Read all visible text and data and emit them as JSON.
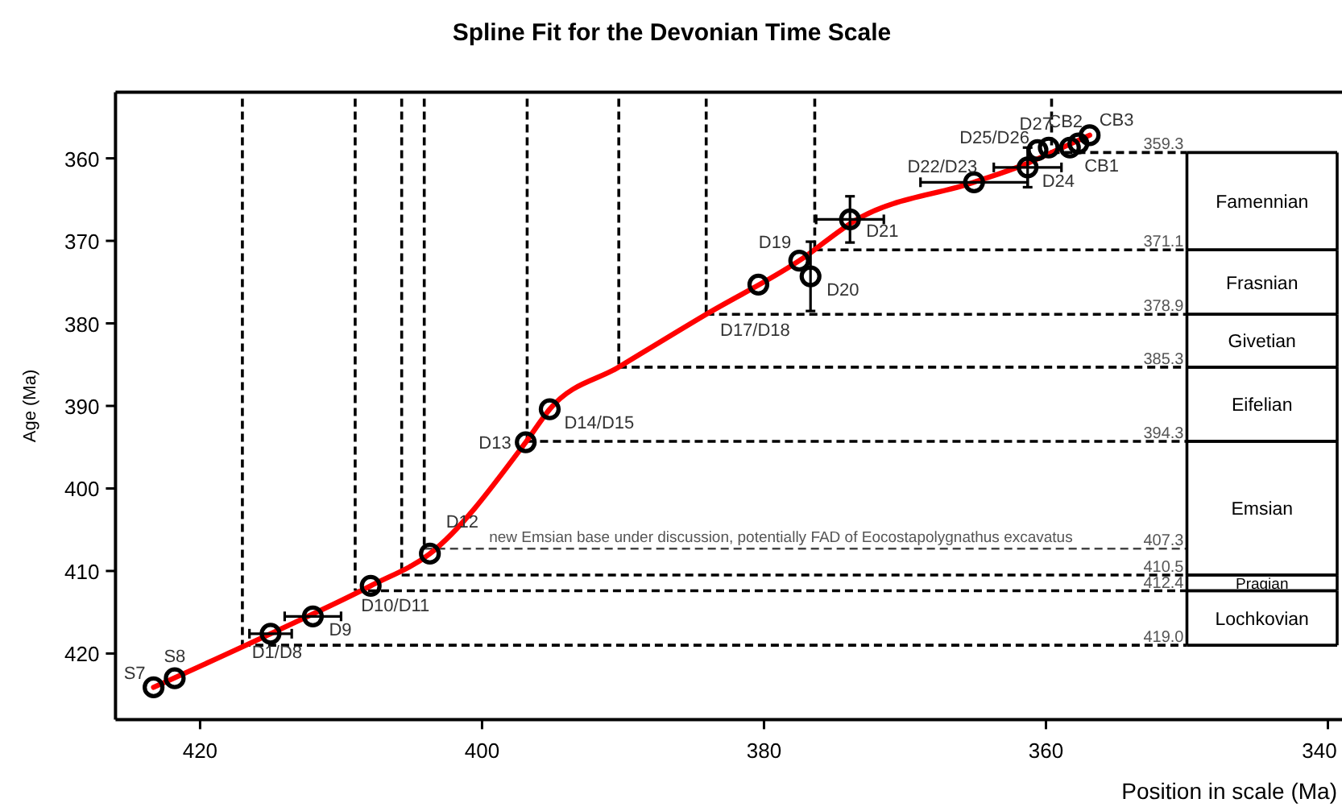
{
  "chart_data": {
    "type": "scatter",
    "title": "Spline Fit for the Devonian Time Scale",
    "xlabel": "Position in scale (Ma)",
    "ylabel": "Age (Ma)",
    "xlim": [
      426,
      339
    ],
    "xticks": [
      420,
      400,
      380,
      360,
      340
    ],
    "ylim": [
      428,
      352
    ],
    "yticks": [
      360,
      370,
      380,
      390,
      400,
      410,
      420
    ],
    "grid": false,
    "series": [
      {
        "type": "line",
        "color": "#ff0000",
        "line_style": "solid",
        "x": [
          423.3,
          415.0,
          407.9,
          403.7,
          396.9,
          395.2,
          390.3,
          384.1,
          377.5,
          373.5,
          365.1,
          361.3,
          359.6,
          356.9
        ],
        "values": [
          424.1,
          417.6,
          411.8,
          407.9,
          394.4,
          390.4,
          385.3,
          378.9,
          372.4,
          367.5,
          362.9,
          360.6,
          359.3,
          357.2
        ]
      },
      {
        "type": "scatter",
        "color": "#000000",
        "marker": "circle",
        "x": [
          423.3,
          421.8,
          415.0,
          412.0,
          407.9,
          403.7,
          396.9,
          395.2,
          380.4,
          377.5,
          376.7,
          373.9,
          365.1,
          361.3,
          360.6,
          359.8,
          358.3,
          357.7,
          356.9
        ],
        "values": [
          424.1,
          423.0,
          417.6,
          415.5,
          411.8,
          407.9,
          394.4,
          390.4,
          375.3,
          372.4,
          374.3,
          367.4,
          362.9,
          361.1,
          359.0,
          358.7,
          358.7,
          358.2,
          357.2
        ],
        "errors": [
          null,
          null,
          null,
          null,
          null,
          null,
          null,
          null,
          null,
          null,
          4.2,
          2.8,
          null,
          2.4,
          null,
          null,
          null,
          null,
          null
        ],
        "xerrors": [
          null,
          null,
          1.5,
          2.0,
          null,
          null,
          null,
          null,
          null,
          null,
          null,
          2.4,
          3.8,
          2.4,
          null,
          null,
          null,
          null,
          null
        ]
      }
    ],
    "annotations": [
      {
        "text": "S7",
        "x": 423.3,
        "y": 424.1
      },
      {
        "text": "S8",
        "x": 421.8,
        "y": 423.0
      },
      {
        "text": "D1/D8",
        "x": 415.0,
        "y": 417.6
      },
      {
        "text": "D9",
        "x": 412.0,
        "y": 415.5
      },
      {
        "text": "D10/D11",
        "x": 407.9,
        "y": 411.8
      },
      {
        "text": "D12",
        "x": 403.7,
        "y": 407.9
      },
      {
        "text": "D13",
        "x": 396.9,
        "y": 394.4
      },
      {
        "text": "D14/D15",
        "x": 395.2,
        "y": 390.4
      },
      {
        "text": "D17/D18",
        "x": 380.4,
        "y": 375.3
      },
      {
        "text": "D19",
        "x": 377.5,
        "y": 372.4
      },
      {
        "text": "D20",
        "x": 376.7,
        "y": 374.3
      },
      {
        "text": "D21",
        "x": 373.9,
        "y": 367.4
      },
      {
        "text": "D22/D23",
        "x": 365.1,
        "y": 362.9
      },
      {
        "text": "D24",
        "x": 361.3,
        "y": 361.1
      },
      {
        "text": "D25/D26",
        "x": 360.6,
        "y": 359.0
      },
      {
        "text": "D27",
        "x": 359.8,
        "y": 358.7
      },
      {
        "text": "CB1",
        "x": 358.3,
        "y": 358.7
      },
      {
        "text": "CB2",
        "x": 357.7,
        "y": 358.2
      },
      {
        "text": "CB3",
        "x": 356.9,
        "y": 357.2
      },
      {
        "text": "new Emsian base under discussion, potentially FAD of Eocostapolygnathus excavatus",
        "x": 399.5,
        "y": 407.3
      },
      "Famennian",
      "Frasnian",
      "Givetian",
      "Eifelian",
      "Emsian",
      "Pragian",
      "Lochkovian"
    ],
    "ref_lines": [
      {
        "axis": "y",
        "value": 359.3,
        "label": "359.3",
        "line_style": "dashed",
        "color": "#000000"
      },
      {
        "axis": "y",
        "value": 371.1,
        "label": "371.1",
        "line_style": "dashed",
        "color": "#000000"
      },
      {
        "axis": "y",
        "value": 378.9,
        "label": "378.9",
        "line_style": "dashed",
        "color": "#000000"
      },
      {
        "axis": "y",
        "value": 385.3,
        "label": "385.3",
        "line_style": "dashed",
        "color": "#000000"
      },
      {
        "axis": "y",
        "value": 394.3,
        "label": "394.3",
        "line_style": "dashed",
        "color": "#000000"
      },
      {
        "axis": "y",
        "value": 407.3,
        "label": "407.3",
        "line_style": "dashed",
        "color": "#444444"
      },
      {
        "axis": "y",
        "value": 410.5,
        "label": "410.5",
        "line_style": "dashed",
        "color": "#000000"
      },
      {
        "axis": "y",
        "value": 412.4,
        "label": "412.4",
        "line_style": "dashed",
        "color": "#000000"
      },
      {
        "axis": "y",
        "value": 419.0,
        "label": "419.0",
        "line_style": "dashed",
        "color": "#000000"
      },
      {
        "axis": "x",
        "value": 359.6,
        "line_style": "dashed",
        "color": "#000000"
      },
      {
        "axis": "x",
        "value": 376.4,
        "line_style": "dashed",
        "color": "#000000"
      },
      {
        "axis": "x",
        "value": 384.1,
        "line_style": "dashed",
        "color": "#000000"
      },
      {
        "axis": "x",
        "value": 390.3,
        "line_style": "dashed",
        "color": "#000000"
      },
      {
        "axis": "x",
        "value": 396.8,
        "line_style": "dashed",
        "color": "#000000"
      },
      {
        "axis": "x",
        "value": 404.1,
        "line_style": "dashed",
        "color": "#000000"
      },
      {
        "axis": "x",
        "value": 405.7,
        "line_style": "dashed",
        "color": "#000000"
      },
      {
        "axis": "x",
        "value": 409.0,
        "line_style": "dashed",
        "color": "#000000"
      },
      {
        "axis": "x",
        "value": 417.0,
        "line_style": "dashed",
        "color": "#000000"
      }
    ]
  }
}
